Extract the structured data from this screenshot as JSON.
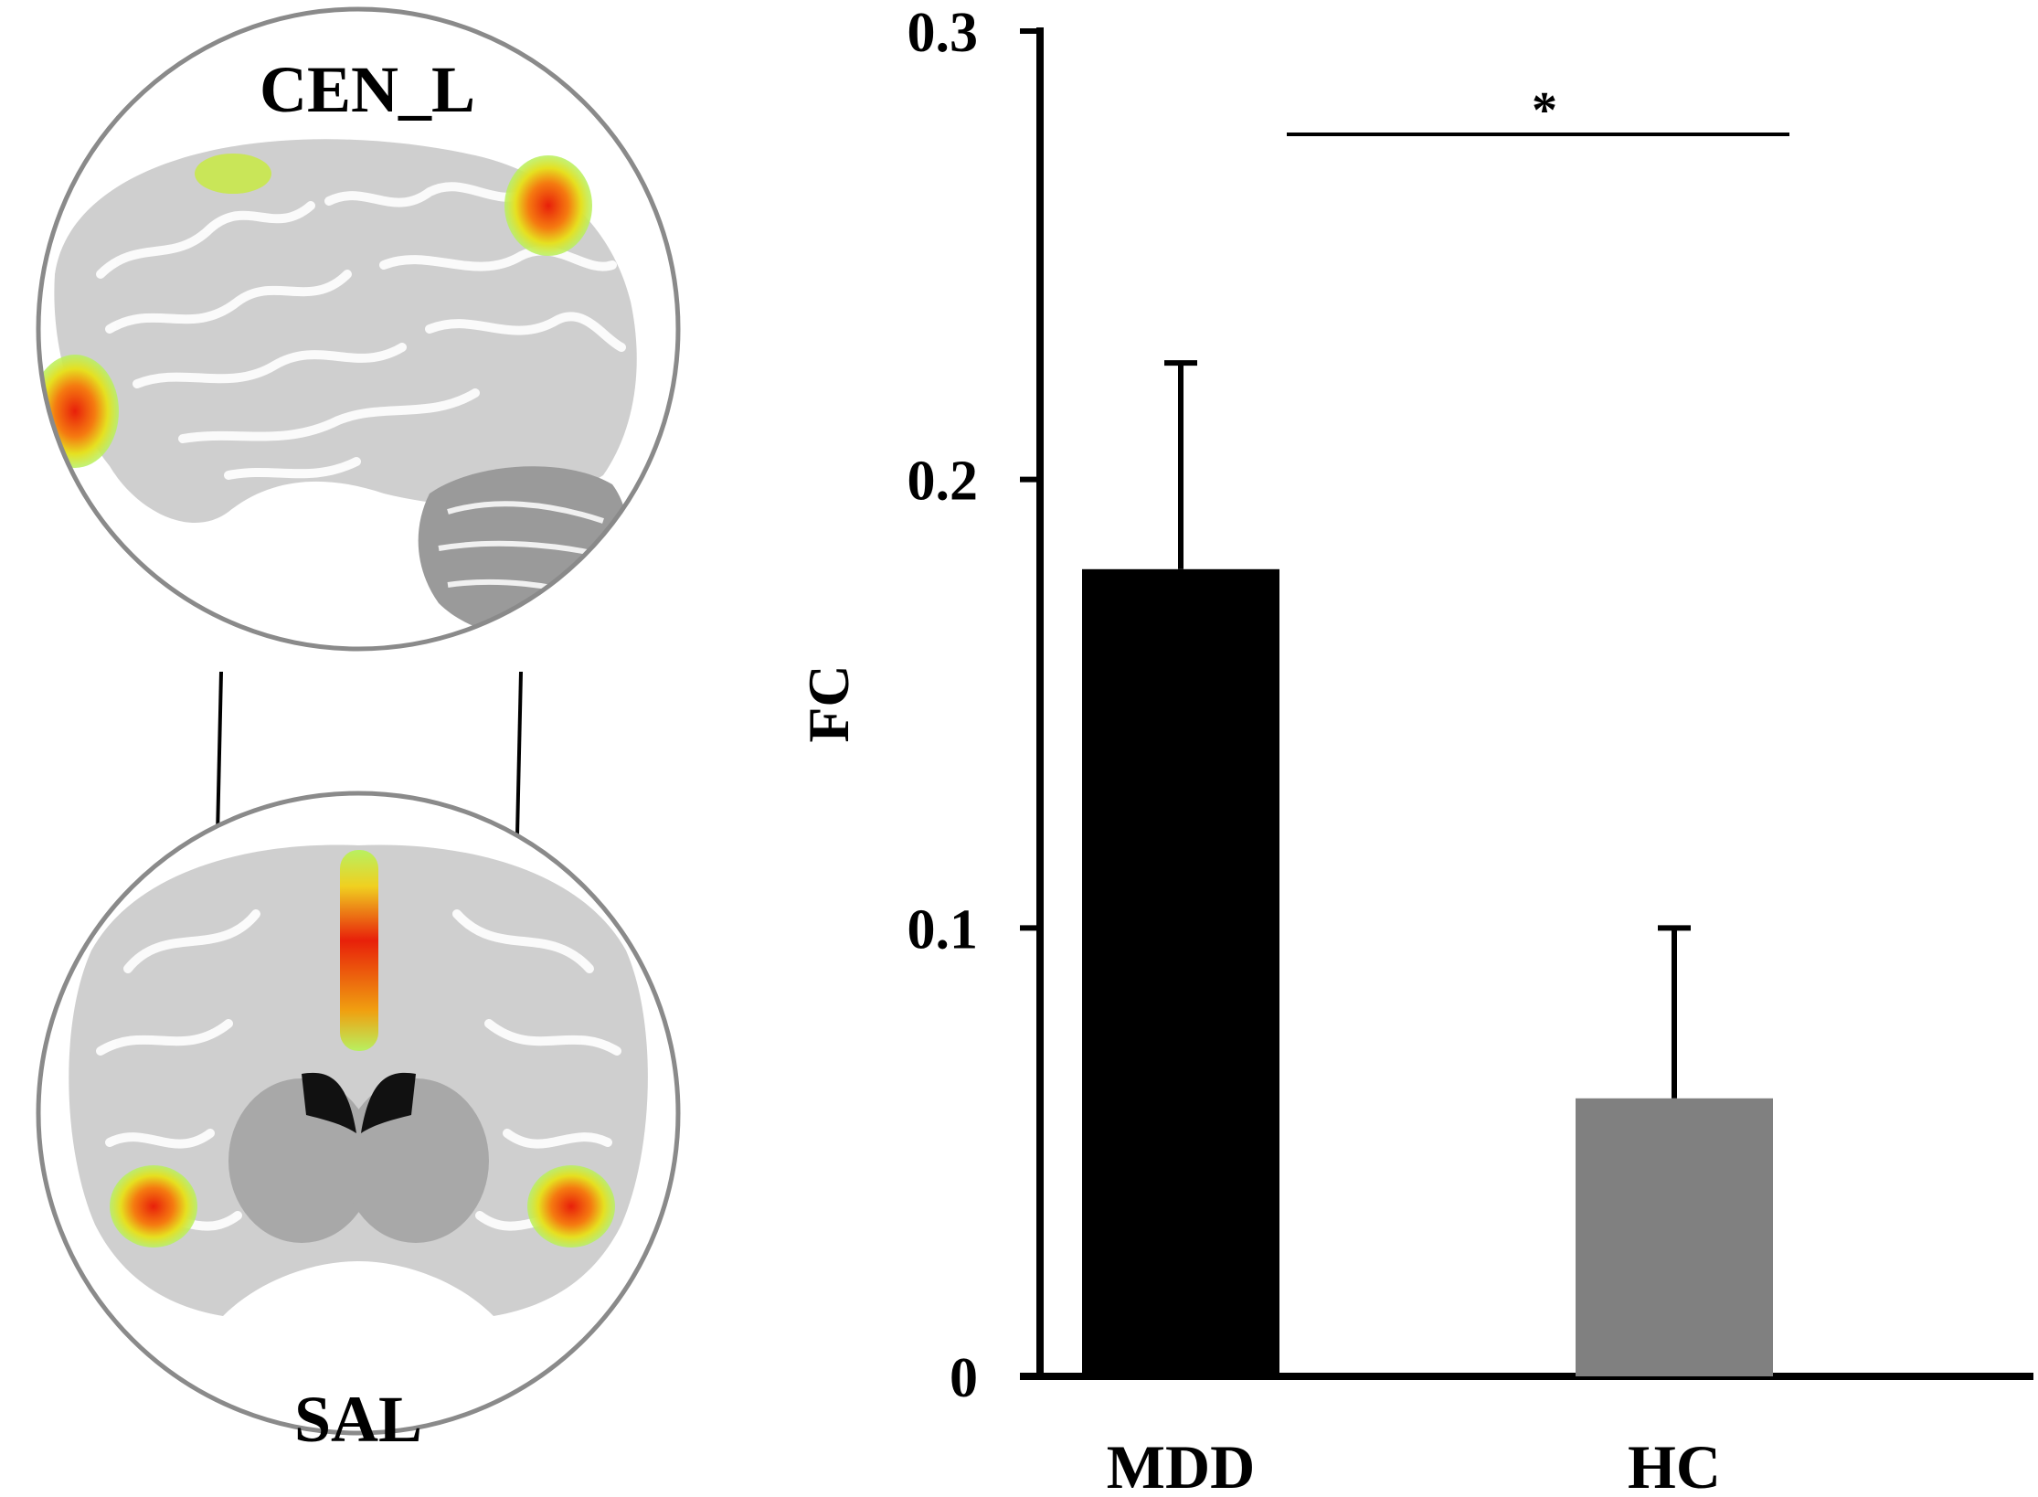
{
  "brain_panel": {
    "top_label": "CEN_L",
    "bottom_label": "SAL"
  },
  "chart_data": {
    "type": "bar",
    "categories": [
      "MDD",
      "HC"
    ],
    "values": [
      0.18,
      0.062
    ],
    "error_upper": [
      0.226,
      0.1
    ],
    "colors": [
      "#000000",
      "#808080"
    ],
    "title": "",
    "xlabel": "",
    "ylabel": "FC",
    "ylim": [
      0,
      0.3
    ],
    "yticks": [
      0,
      0.1,
      0.2,
      0.3
    ],
    "ytick_labels": [
      "0",
      "0.1",
      "0.2",
      "0.3"
    ],
    "significance": {
      "between": [
        "MDD",
        "HC"
      ],
      "label": "*"
    },
    "grid": false
  }
}
